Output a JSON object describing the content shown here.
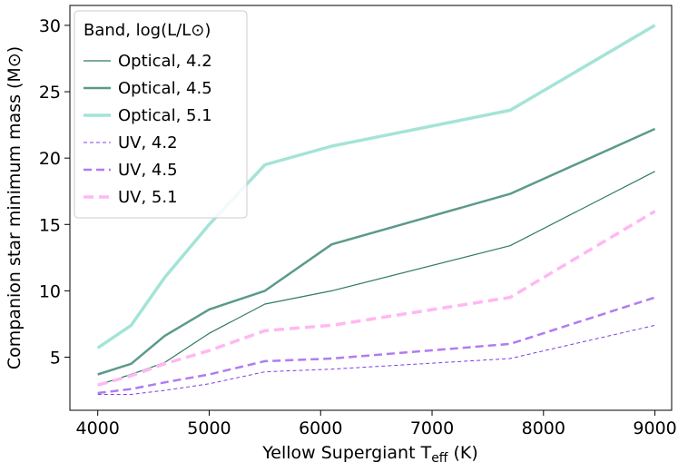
{
  "chart_data": {
    "type": "line",
    "xlabel_main": "Yellow Supergiant T",
    "xlabel_sub": "eff",
    "xlabel_unit": " (K)",
    "ylabel": "Companion star minimum mass (M⊙)",
    "xlim": [
      3750,
      9150
    ],
    "ylim": [
      1.0,
      31.5
    ],
    "xticks": [
      4000,
      5000,
      6000,
      7000,
      8000,
      9000
    ],
    "yticks": [
      5,
      10,
      15,
      20,
      25,
      30
    ],
    "x": [
      4000,
      4300,
      4600,
      5000,
      5500,
      6100,
      7700,
      9000
    ],
    "legend": {
      "title": "Band, log(L/L⊙)",
      "position": "top-left"
    },
    "series": [
      {
        "name": "Optical, 4.2",
        "color": "#2e7a65",
        "width": 1.2,
        "dash": "",
        "values": [
          2.9,
          3.7,
          4.6,
          6.8,
          9.0,
          10.0,
          13.4,
          19.0
        ]
      },
      {
        "name": "Optical, 4.5",
        "color": "#5b9a8b",
        "width": 2.5,
        "dash": "",
        "values": [
          3.7,
          4.5,
          6.6,
          8.6,
          10.0,
          13.5,
          17.3,
          22.2
        ]
      },
      {
        "name": "Optical, 5.1",
        "color": "#a3e4d7",
        "width": 3.5,
        "dash": "",
        "values": [
          5.7,
          7.4,
          11.0,
          15.0,
          19.5,
          20.9,
          23.6,
          30.0
        ]
      },
      {
        "name": "UV, 4.2",
        "color": "#7b3fe4",
        "width": 1.0,
        "dash": "4 3",
        "values": [
          2.2,
          2.2,
          2.5,
          3.0,
          3.9,
          4.1,
          4.9,
          7.4
        ]
      },
      {
        "name": "UV, 4.5",
        "color": "#b07cf0",
        "width": 2.5,
        "dash": "9 5",
        "values": [
          2.3,
          2.6,
          3.1,
          3.7,
          4.7,
          4.9,
          6.0,
          9.5
        ]
      },
      {
        "name": "UV, 5.1",
        "color": "#ffb8f2",
        "width": 3.5,
        "dash": "11 6",
        "values": [
          2.9,
          3.6,
          4.5,
          5.5,
          7.0,
          7.4,
          9.5,
          16.0
        ]
      }
    ]
  }
}
